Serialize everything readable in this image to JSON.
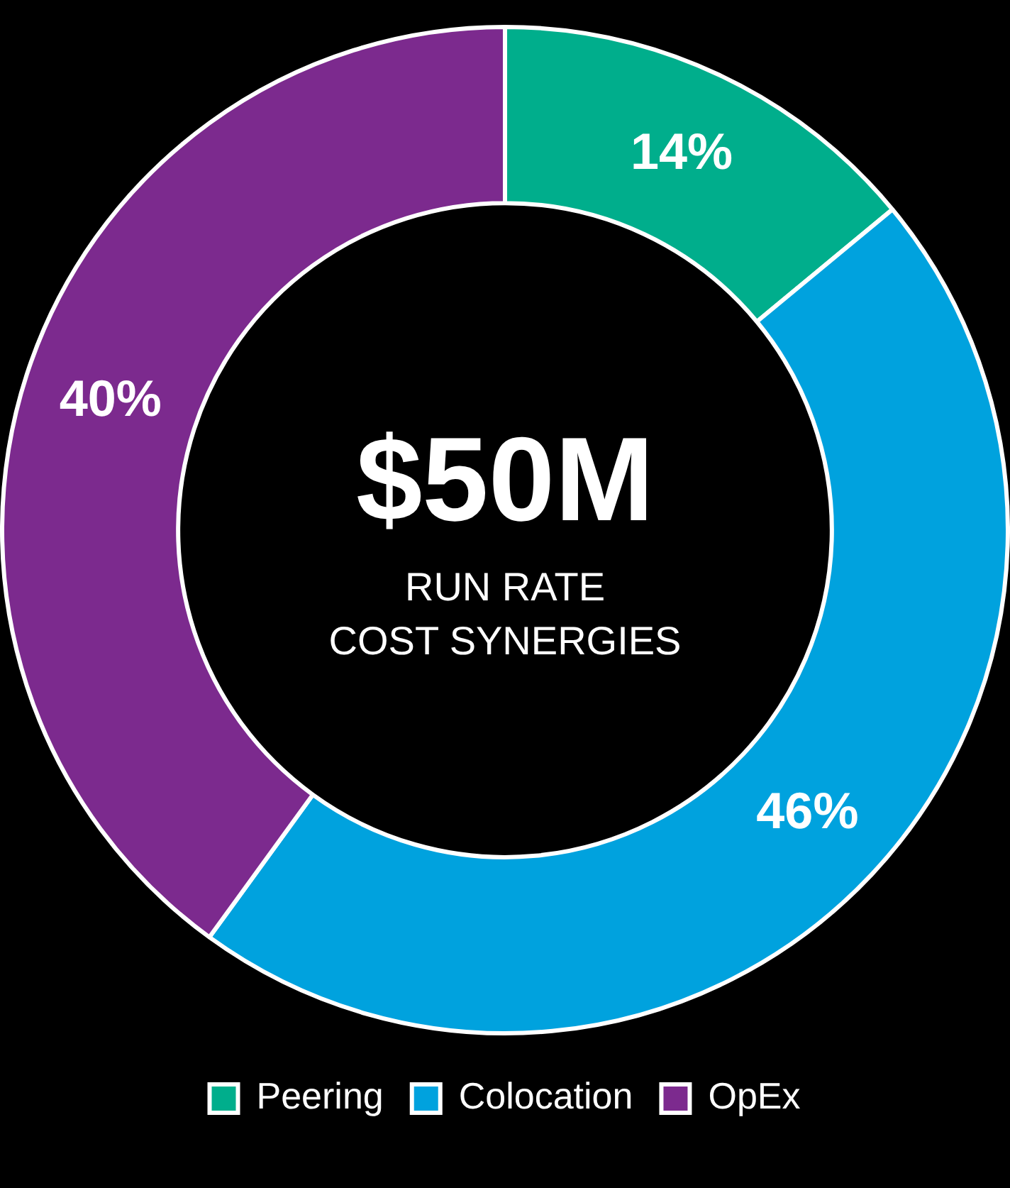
{
  "chart_data": {
    "type": "donut",
    "categories": [
      "Peering",
      "Colocation",
      "OpEx"
    ],
    "values": [
      14,
      46,
      40
    ],
    "colors": [
      "#00ae8c",
      "#00a2de",
      "#7c2a8e"
    ],
    "value_labels": [
      "14%",
      "46%",
      "40%"
    ],
    "legend": "bottom",
    "annotations": [
      "$50M",
      "RUN RATE",
      "COST SYNERGIES"
    ]
  }
}
